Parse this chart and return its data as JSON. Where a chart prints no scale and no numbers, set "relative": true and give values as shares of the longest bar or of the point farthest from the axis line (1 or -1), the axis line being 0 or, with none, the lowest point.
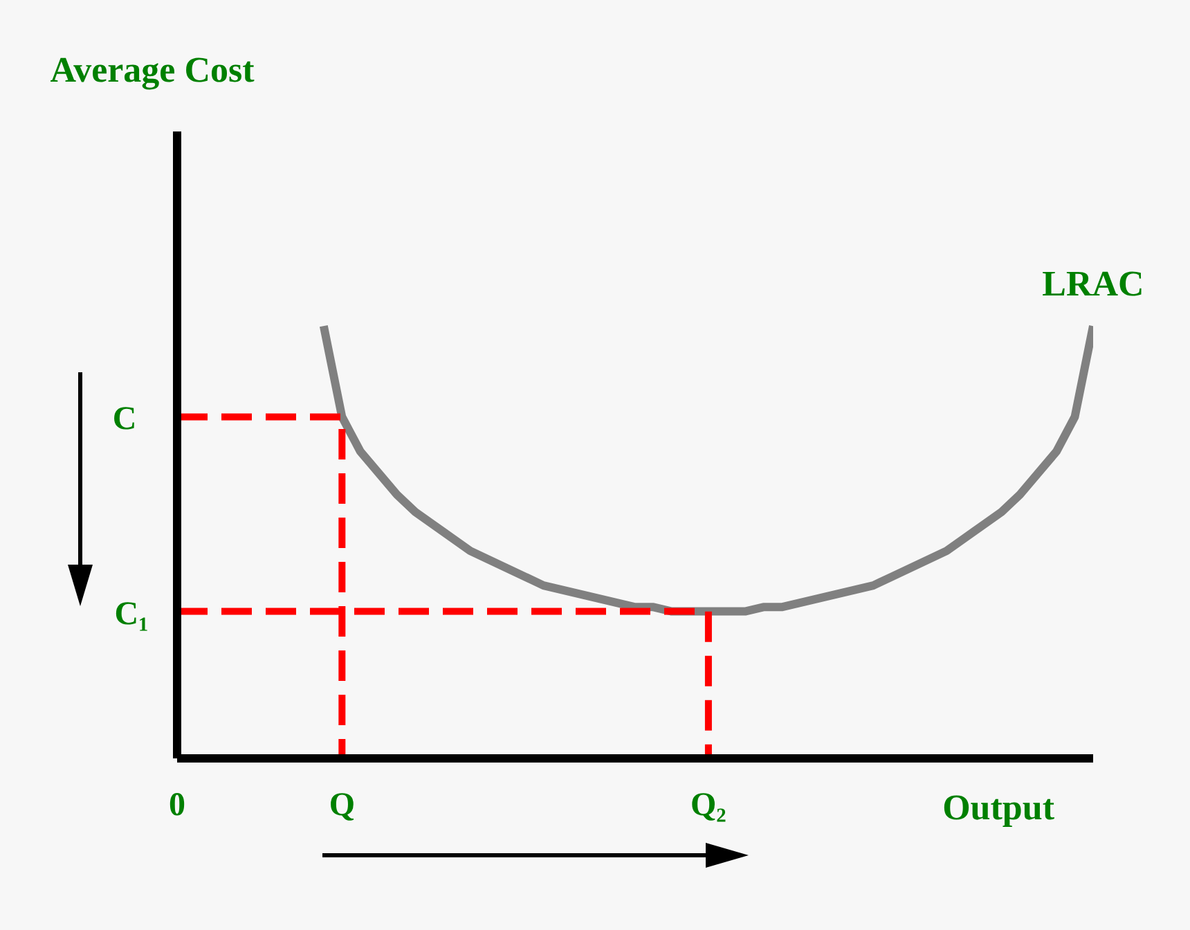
{
  "chart_data": {
    "type": "line",
    "xlabel": "Output",
    "relative": true,
    "categories": [
      "0",
      null,
      null,
      null,
      null,
      null,
      null,
      null,
      null,
      "Q",
      null,
      null,
      null,
      null,
      null,
      null,
      null,
      null,
      null,
      null,
      null,
      null,
      null,
      null,
      null,
      null,
      null,
      null,
      null,
      "Q₂",
      null,
      null,
      null,
      null,
      null,
      null,
      null,
      null,
      null,
      null,
      null,
      null,
      null,
      null,
      null,
      null,
      null,
      null,
      null,
      null,
      null
    ],
    "annotations": [
      "Average Cost",
      "C",
      "C₁"
    ],
    "marker": "none",
    "series": [
      {
        "name": "LRAC",
        "color": "#808080",
        "line_style": "solid",
        "values": [
          null,
          null,
          null,
          null,
          null,
          null,
          null,
          null,
          1.0,
          0.79,
          0.71,
          0.66,
          0.61,
          0.57,
          0.54,
          0.51,
          0.48,
          0.46,
          0.44,
          0.42,
          0.4,
          0.39,
          0.38,
          0.37,
          0.36,
          0.35,
          0.35,
          0.34,
          0.34,
          0.34,
          0.34,
          0.34,
          0.35,
          0.35,
          0.36,
          0.37,
          0.38,
          0.39,
          0.4,
          0.42,
          0.44,
          0.46,
          0.48,
          0.51,
          0.54,
          0.57,
          0.61,
          0.66,
          0.71,
          0.79,
          1.0
        ]
      },
      {
        "type": "step",
        "color": "#ff0000",
        "line_style": "dashed",
        "values": [
          0.79,
          0.79,
          0.79,
          0.79,
          0.79,
          0.79,
          0.79,
          0.79,
          0.79,
          0,
          null,
          null,
          null,
          null,
          null,
          null,
          null,
          null,
          null,
          null,
          null,
          null,
          null,
          null,
          null,
          null,
          null,
          null,
          null,
          null,
          null,
          null,
          null,
          null,
          null,
          null,
          null,
          null,
          null,
          null,
          null,
          null,
          null,
          null,
          null,
          null,
          null,
          null,
          null,
          null,
          null
        ]
      },
      {
        "type": "step",
        "color": "#ff0000",
        "line_style": "dashed",
        "values": [
          0.34,
          0.34,
          0.34,
          0.34,
          0.34,
          0.34,
          0.34,
          0.34,
          0.34,
          0.34,
          0.34,
          0.34,
          0.34,
          0.34,
          0.34,
          0.34,
          0.34,
          0.34,
          0.34,
          0.34,
          0.34,
          0.34,
          0.34,
          0.34,
          0.34,
          0.34,
          0.34,
          0.34,
          0.34,
          0,
          null,
          null,
          null,
          null,
          null,
          null,
          null,
          null,
          null,
          null,
          null,
          null,
          null,
          null,
          null,
          null,
          null,
          null,
          null,
          null,
          null
        ]
      }
    ]
  }
}
